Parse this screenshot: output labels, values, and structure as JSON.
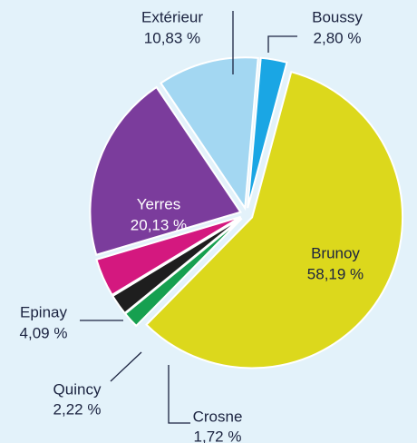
{
  "chart_data": {
    "type": "pie",
    "categories": [
      "Boussy",
      "Brunoy",
      "Crosne",
      "Quincy",
      "Epinay",
      "Yerres",
      "Extérieur"
    ],
    "values": [
      2.8,
      58.19,
      1.72,
      2.22,
      4.09,
      20.13,
      10.83
    ],
    "value_labels": [
      "2,80 %",
      "58,19 %",
      "1,72 %",
      "2,22 %",
      "4,09 %",
      "20,13 %",
      "10,83 %"
    ],
    "colors": [
      "#1aa6e4",
      "#dcd81c",
      "#16a050",
      "#1e1e1e",
      "#d4187f",
      "#7b3c9c",
      "#a3d7f2"
    ]
  }
}
